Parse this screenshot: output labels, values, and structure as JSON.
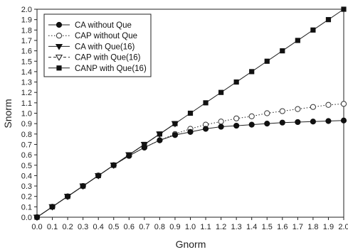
{
  "chart_data": {
    "type": "line",
    "title": "",
    "xlabel": "Gnorm",
    "ylabel": "Snorm",
    "xlim": [
      0.0,
      2.0
    ],
    "ylim": [
      0.0,
      2.0
    ],
    "x_ticks": [
      "0.0",
      "0.1",
      "0.2",
      "0.3",
      "0.4",
      "0.5",
      "0.6",
      "0.7",
      "0.8",
      "0.9",
      "1.0",
      "1.1",
      "1.2",
      "1.3",
      "1.4",
      "1.5",
      "1.6",
      "1.7",
      "1.8",
      "1.9",
      "2.0"
    ],
    "y_ticks": [
      "0.0",
      "0.1",
      "0.2",
      "0.3",
      "0.4",
      "0.5",
      "0.6",
      "0.7",
      "0.8",
      "0.9",
      "1.0",
      "1.1",
      "1.2",
      "1.3",
      "1.4",
      "1.5",
      "1.6",
      "1.7",
      "1.8",
      "1.9",
      "2.0"
    ],
    "grid": false,
    "legend_position": "top-left",
    "series": [
      {
        "name": "CA without Que",
        "marker": "filled-circle",
        "line": "solid",
        "x": [
          0.0,
          0.1,
          0.2,
          0.3,
          0.4,
          0.5,
          0.6,
          0.7,
          0.8,
          0.9,
          1.0,
          1.1,
          1.2,
          1.3,
          1.4,
          1.5,
          1.6,
          1.7,
          1.8,
          1.9,
          2.0
        ],
        "y": [
          0.0,
          0.1,
          0.2,
          0.3,
          0.4,
          0.5,
          0.59,
          0.67,
          0.74,
          0.79,
          0.82,
          0.85,
          0.87,
          0.88,
          0.89,
          0.9,
          0.91,
          0.915,
          0.92,
          0.925,
          0.93
        ]
      },
      {
        "name": "CAP without Que",
        "marker": "open-circle",
        "line": "dotted",
        "x": [
          0.0,
          0.1,
          0.2,
          0.3,
          0.4,
          0.5,
          0.6,
          0.7,
          0.8,
          0.9,
          1.0,
          1.1,
          1.2,
          1.3,
          1.4,
          1.5,
          1.6,
          1.7,
          1.8,
          1.9,
          2.0
        ],
        "y": [
          0.0,
          0.1,
          0.2,
          0.3,
          0.4,
          0.5,
          0.59,
          0.67,
          0.74,
          0.8,
          0.85,
          0.89,
          0.92,
          0.95,
          0.97,
          1.0,
          1.02,
          1.04,
          1.06,
          1.08,
          1.09
        ]
      },
      {
        "name": "CA with Que(16)",
        "marker": "filled-triangle-down",
        "line": "solid",
        "x": [
          0.0,
          0.1,
          0.2,
          0.3,
          0.4,
          0.5,
          0.6,
          0.7,
          0.8,
          0.9
        ],
        "y": [
          0.0,
          0.1,
          0.2,
          0.3,
          0.4,
          0.5,
          0.6,
          0.7,
          0.8,
          0.9
        ]
      },
      {
        "name": "CAP with Que(16)",
        "marker": "open-triangle-down",
        "line": "dashed",
        "x": [
          0.0,
          0.1,
          0.2,
          0.3,
          0.4,
          0.5,
          0.6,
          0.7,
          0.8,
          0.9
        ],
        "y": [
          0.0,
          0.1,
          0.2,
          0.3,
          0.4,
          0.5,
          0.6,
          0.7,
          0.8,
          0.9
        ]
      },
      {
        "name": "CANP with Que(16)",
        "marker": "filled-square",
        "line": "solid",
        "x": [
          0.0,
          0.1,
          0.2,
          0.3,
          0.4,
          0.5,
          0.6,
          0.7,
          0.8,
          0.9,
          1.0,
          1.1,
          1.2,
          1.3,
          1.4,
          1.5,
          1.6,
          1.7,
          1.8,
          1.9,
          2.0
        ],
        "y": [
          0.0,
          0.1,
          0.2,
          0.3,
          0.4,
          0.5,
          0.6,
          0.7,
          0.8,
          0.9,
          1.0,
          1.1,
          1.2,
          1.3,
          1.4,
          1.5,
          1.6,
          1.7,
          1.8,
          1.9,
          2.0
        ]
      }
    ]
  }
}
